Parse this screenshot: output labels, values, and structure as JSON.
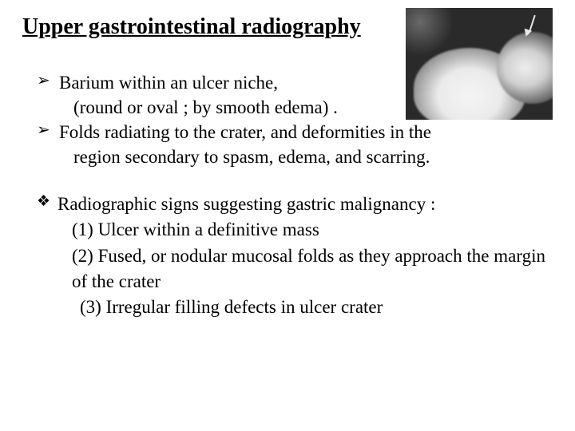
{
  "title": "Upper gastrointestinal radiography",
  "bullets": [
    {
      "line1": "Barium within an ulcer niche,",
      "line2": "(round or oval ; by smooth edema) ."
    },
    {
      "line1": "Folds radiating to the crater, and deformities in the",
      "line2": "region secondary to spasm, edema, and scarring."
    }
  ],
  "diamond": {
    "heading": "Radiographic signs suggesting gastric malignancy :",
    "items": [
      "(1) Ulcer within a definitive mass",
      "(2)  Fused, or nodular mucosal folds as they approach the margin of the  crater",
      "(3) Irregular filling defects in ulcer crater"
    ]
  },
  "styling": {
    "title_fontsize": 28,
    "body_fontsize": 23,
    "font_family": "Times New Roman",
    "background": "#ffffff",
    "text_color": "#000000",
    "bullet_glyph": "➢",
    "diamond_glyph": "❖"
  },
  "image": {
    "description": "grayscale barium radiograph with arrow",
    "width": 184,
    "height": 140,
    "bg_color": "#2a2a2a",
    "highlight_color": "#f0f0f0"
  }
}
